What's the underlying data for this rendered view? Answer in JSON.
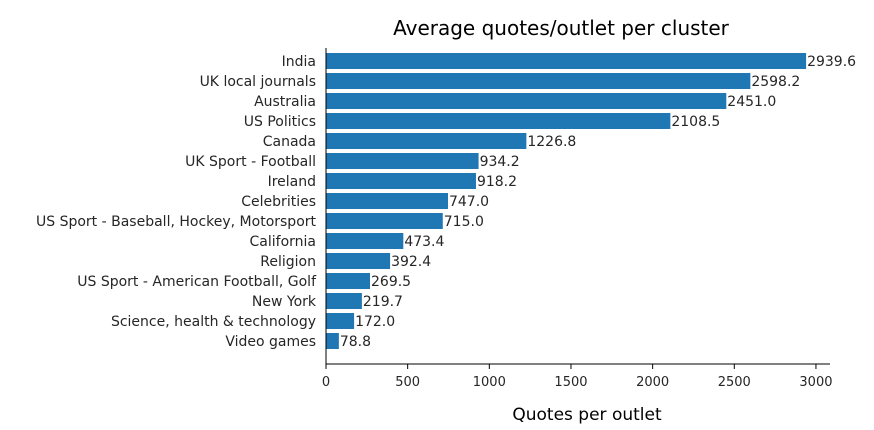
{
  "chart_data": {
    "type": "bar",
    "orientation": "horizontal",
    "title": "Average quotes/outlet per cluster",
    "xlabel": "Quotes per outlet",
    "ylabel": "",
    "categories": [
      "India",
      "UK local journals",
      "Australia",
      "US Politics",
      "Canada",
      "UK Sport - Football",
      "Ireland",
      "Celebrities",
      "US Sport - Baseball, Hockey, Motorsport",
      "California",
      "Religion",
      "US Sport - American Football, Golf",
      "New York",
      "Science, health & technology",
      "Video games"
    ],
    "values": [
      2939.6,
      2598.2,
      2451.0,
      2108.5,
      1226.8,
      934.2,
      918.2,
      747.0,
      715.0,
      473.4,
      392.4,
      269.5,
      219.7,
      172.0,
      78.8
    ],
    "value_labels": [
      "2939.6",
      "2598.2",
      "2451.0",
      "2108.5",
      "1226.8",
      "934.2",
      "918.2",
      "747.0",
      "715.0",
      "473.4",
      "392.4",
      "269.5",
      "219.7",
      "172.0",
      "78.8"
    ],
    "xticks": [
      0,
      500,
      1000,
      1500,
      2000,
      2500,
      3000
    ],
    "xtick_labels": [
      "0",
      "500",
      "1000",
      "1500",
      "2000",
      "2500",
      "3000"
    ],
    "xlim": [
      0,
      3086
    ],
    "grid": false,
    "bar_color": "#1f77b4"
  }
}
